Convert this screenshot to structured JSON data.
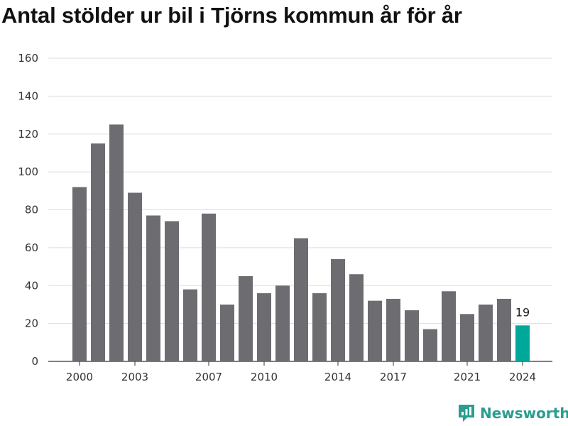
{
  "title": "Antal stölder ur bil i Tjörns kommun år för år",
  "brand": {
    "name": "Newsworthy",
    "icon": "newsworthy-logo-icon",
    "color": "#2a9d8f"
  },
  "chart_data": {
    "type": "bar",
    "title": "Antal stölder ur bil i Tjörns kommun år för år",
    "xlabel": "",
    "ylabel": "",
    "ylim": [
      0,
      160
    ],
    "yticks": [
      0,
      20,
      40,
      60,
      80,
      100,
      120,
      140,
      160
    ],
    "grid": true,
    "categories": [
      2000,
      2001,
      2002,
      2003,
      2004,
      2005,
      2006,
      2007,
      2008,
      2009,
      2010,
      2011,
      2012,
      2013,
      2014,
      2015,
      2016,
      2017,
      2018,
      2019,
      2020,
      2021,
      2022,
      2023,
      2024
    ],
    "xtick_labels": [
      "2000",
      "2003",
      "2007",
      "2010",
      "2014",
      "2017",
      "2021",
      "2024"
    ],
    "values": [
      92,
      115,
      125,
      89,
      77,
      74,
      38,
      78,
      30,
      45,
      36,
      40,
      65,
      36,
      54,
      46,
      32,
      33,
      27,
      17,
      37,
      25,
      30,
      33,
      19
    ],
    "bar_color": "#6d6c71",
    "highlight_color": "#00a89a",
    "highlight_category": 2024,
    "data_labels": [
      {
        "category": 2024,
        "text": "19"
      }
    ]
  }
}
